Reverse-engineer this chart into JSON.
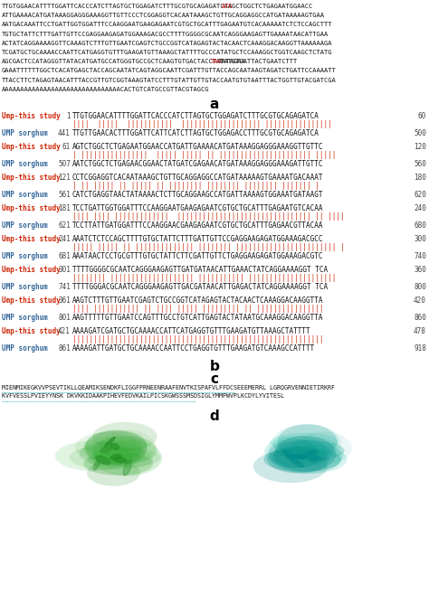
{
  "nuc_lines": [
    [
      "TTGTGGAACATTTTGGATTCACCCATCTTAGTGCTGGAGATCTTTGCGTGCAGAGATCAAGCTGGCTCTGAGAATGGAACC",
      "ATG",
      ""
    ],
    [
      "ATTGAAAACATGATAAAGGAGGGAAAGGTTGTTCCCTCGGAGGTCACAATAAAGCTGTTGCAGGAGGCCATGATAAAAAGTGAA",
      "",
      ""
    ],
    [
      "AATGACAAATTCCTGATTGGTGGATTTCCAAGGAATGAAGAGAATCGTGCTGCATTTGAGAATGTCACAAAAATCTCTCCAGCTTT",
      "",
      ""
    ],
    [
      "TGTGCTATTCTTTGATTGTTCCGAGGAAGAGATGGAAAGACGCCTTTTGGGGCGCAATCAGGGAAGAGTTGAAAATAACATTGAA",
      "",
      ""
    ],
    [
      "ACTATCAGGAAAAGGTTCAAAGTCTTTGTTGAATCGAGTCTGCCGGTCATAGAGTACTACAACTCAAAGGACAAGGTTAAAAAAGA",
      "",
      ""
    ],
    [
      "TCGATGCTGCAAAACCAATTCATGAGGTGTTTGAAGATGTTAAAGCTATTTTGCCCATATGCTCCAAAGGCTGGTCAAGCTCTATG",
      "",
      ""
    ],
    [
      "AGCGACTCCATAGGGTTATACATGATGCCATGGGTGCCGCTCAAGTGTGACTACCTATATGTGATTACTGAATCTTT",
      "TAA",
      "TATAGAA"
    ],
    [
      "GAAATTTTTTGGCTCACATGAGCTACCAGCAATATCAGTAGGCAATTCGATTTGTTACCAGCAATAAGTAGATCTGATTCCAAAATT",
      "",
      ""
    ],
    [
      "TTACCTTCTAGAGTAACATTTACCGTTGTCGGTAAAGTATCCTTTGTATTGTTGTACCAATGTGTAATTTACTGGTTGTACGATCGA",
      "",
      ""
    ],
    [
      "AAAAAAAAAAAAAAAAAAAAAAAAAAAAAAACACTGTCATGCCGTTACGTAGCG",
      "",
      ""
    ]
  ],
  "alignments": [
    {
      "l1": "Ump-this study",
      "n1": 1,
      "s1": "TTGTGGAACATTTTGGATTCACCCATCTTAGTGCTGGAGATCTTTGCGTGCAGAGATCA",
      "e1": 60,
      "match": "||||  |||||  |||||||||||  ||||||||||||||||||| ||||||||||||||||",
      "l2": "UMP sorghum",
      "n2": 441,
      "s2": "TTGTTGAACACTTTGGATTCATTCATCTTAGTGCTGGAGACCTTTGCGTGCAGAGATCA",
      "e2": 500
    },
    {
      "l1": "Ump-this study",
      "n1": 61,
      "s1": "AGTCTGGCTCTGAGAATGGAACCATGATTGAAAACATGATAAAGGAGGGAAAGGTTGTTC",
      "e1": 120,
      "match": "| ||||||||||||||||  ||||| ||||| || |||||||||||||||||||||| |||||",
      "l2": "UMP sorghum",
      "n2": 507,
      "s2": "AATCTGGCTCTGAGAACGGAACTATGATCGAGAACATGATAAAGGAGGGAAAGATTGTTC",
      "e2": 560
    },
    {
      "l1": "Ump-this study",
      "n1": 121,
      "s1": "CCTCGGAGGTCACAATAAAGCTGTTGCAGGAGGCCATGATAAAAAGTGAAAATGACAAAT",
      "e1": 180,
      "match": "| || ||||| || ||||| || |||||||| |||||||| |||||||| ||||||| |",
      "l2": "UMP sorghum",
      "n2": 561,
      "s2": "CATCTGAGGTAACTATAAAACTCTTGCAGGAAGCCATGATTAAAAGTGGAAATGATAAGT",
      "e2": 620
    },
    {
      "l1": "Ump-this study",
      "n1": 181,
      "s1": "TCCTGATTGGTGGATTTCCAAGGAATGAAGAGAATCGTGCTGCATTTGAGAATGTCACAA",
      "e1": 240,
      "match": "|||| |||| |||||||||||||  |||||||||||||||||||||||||||||||| || ||||",
      "l2": "UMP sorghum",
      "n2": 621,
      "s2": "TCCTTATTGATGGATTTCCAAGGAACGAAGAGAATCGTGCTGCATTTGAGAACGTTACAA",
      "e2": 680
    },
    {
      "l1": "Ump-this study",
      "n1": 241,
      "s1": "AAATCTCTCCAGCTTTTGTGCTATTCTTTGATTGTTCCGAGGAAGAGATGGAAAGACGCC",
      "e1": 300,
      "match": "||||| ||||| || |||||||||||||| |||||||| |||||||||||||||||||||||| |",
      "l2": "UMP sorghum",
      "n2": 681,
      "s2": "AAATAACTCCTGCGTTTGTGCTATTCTTCGATTGTTCTGAGGAAGAGATGGAAAGACGTC",
      "e2": 740
    },
    {
      "l1": "Ump-this study",
      "n1": 301,
      "s1": "TTTTGGGGCGCAATCAGGGAAGAGTTGATGATAACATTGAAACTATCAGGAAAAGGT TCA",
      "e1": 360,
      "match": "|||||||| |||||||||||||||||||| ||||||||||| |||||||||||||||||||||",
      "l2": "UMP sorghum",
      "n2": 741,
      "s2": "TTTTGGGACGCAATCAGGGAAGAGTTGACGATAACATTGAGACTATCAGGAAAAGGT TCA",
      "e2": 800
    },
    {
      "l1": "Ump-this study",
      "n1": 361,
      "s1": "AAGTCTTTGTTGAATCGAGTCTGCCGGTCATAGAGTACTACAACTCAAAGGACAAGGTTA",
      "e1": 420,
      "match": "|||| ||||||||||| || |||| ||||| ||||||||| || ||||||||||||||||",
      "l2": "UMP sorghum",
      "n2": 801,
      "s2": "AAGTTTTTGTTGAATCCAGTTTGCCTGTCATTGAGTACTATAATGCAAAGGACAAGGTTA",
      "e2": 860
    },
    {
      "l1": "Ump-this study",
      "n1": 421,
      "s1": "AAAAGATCGATGCTGCAAAACCATTCATGAGGTGTTTGAAGATGTTAAAGCTATTTT",
      "e1": 478,
      "match": "||||||||||||||||||||||||||||||||||||||||||||||||||||||||||||",
      "l2": "UMP sorghum",
      "n2": 861,
      "s2": "AAAAGATTGATGCTGCAAAACCAATTCCTGAGGTGTTTGAAGATGTCAAAGCCATTTT",
      "e2": 918
    }
  ],
  "aa_line1": "MIENMIKEGKVVPSEVTIKLLQEAMIKSENDKFLIGGFPRNEENRAAFENVTKISPAFVLFFDCSEEEMERRL LGRQGRVENNIETIRKRF",
  "aa_line2": "KVFVESSLPVIEYYNSK DKVKKIDAAKPIHEVFEDVKAILPICSKGWSSSMSDSIGLYMMPWVPLKCDYLYVITESL",
  "color_study": "#CC2200",
  "color_sorghum": "#336699",
  "color_match": "#CC2200",
  "color_black": "#111111",
  "color_num": "#444444",
  "color_red": "#CC0000",
  "color_bg": "#ffffff",
  "nuc_fs": 5.0,
  "align_fs": 5.5,
  "label_fs": 5.5,
  "num_fs": 5.5
}
